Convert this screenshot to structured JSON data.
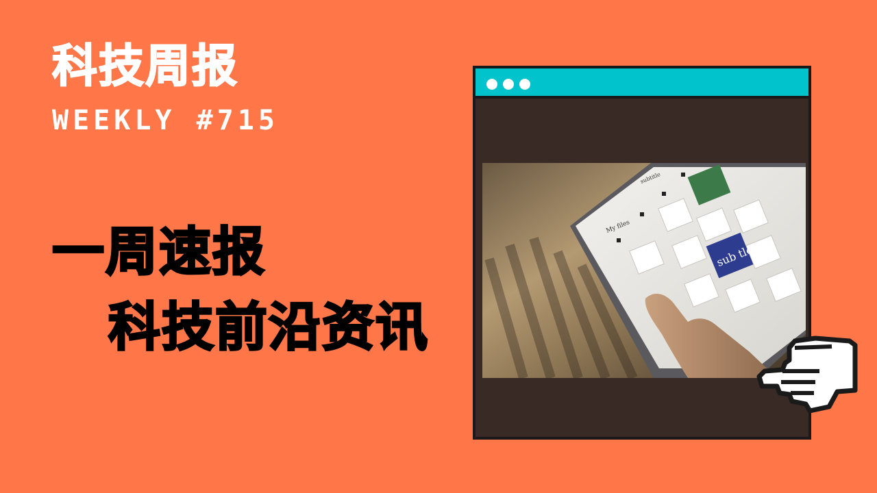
{
  "header": {
    "title": "科技周报",
    "subtitle": "WEEKLY #715"
  },
  "headline": {
    "line1": "一周速报",
    "line2": "科技前沿资讯"
  },
  "photo": {
    "tablet_heading": "My files",
    "tablet_brand": "subtitle",
    "cover_text": "sub tle"
  },
  "colors": {
    "background": "#FF7648",
    "text": "#000000",
    "title_text": "#FFFFFF",
    "window_bar": "#00C3CC",
    "window_body": "#3A2A26",
    "window_border": "#1A1A1A",
    "cover_blue": "#2D3C8E",
    "cover_green": "#3C7A4A"
  },
  "icons": {
    "window_controls": [
      "dot-icon",
      "dot-icon",
      "dot-icon"
    ],
    "cursor": "pointing-hand-icon"
  }
}
